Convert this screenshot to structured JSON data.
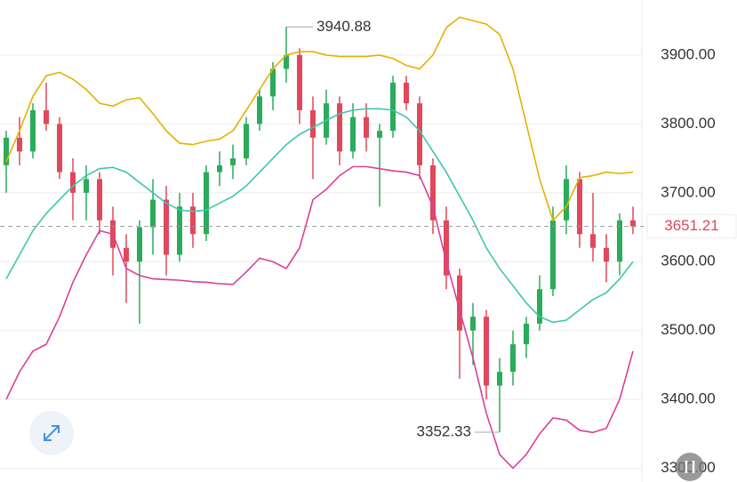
{
  "chart_data": {
    "type": "candlestick",
    "up_color": "#2bab5c",
    "down_color": "#e0485c",
    "open": [
      3740,
      3780,
      3760,
      3820,
      3800,
      3730,
      3700,
      3720,
      3660,
      3620,
      3600,
      3650,
      3690,
      3610,
      3680,
      3640,
      3730,
      3740,
      3750,
      3800,
      3840,
      3880,
      3900,
      3820,
      3780,
      3830,
      3760,
      3810,
      3780,
      3790,
      3860,
      3830,
      3740,
      3660,
      3580,
      3500,
      3520,
      3420,
      3440,
      3480,
      3510,
      3560,
      3660,
      3720,
      3640,
      3620,
      3600,
      3660
    ],
    "high": [
      3790,
      3810,
      3830,
      3860,
      3810,
      3750,
      3740,
      3730,
      3680,
      3640,
      3660,
      3720,
      3710,
      3700,
      3700,
      3740,
      3760,
      3770,
      3810,
      3850,
      3890,
      3940.88,
      3910,
      3840,
      3850,
      3840,
      3830,
      3830,
      3800,
      3870,
      3870,
      3840,
      3750,
      3680,
      3590,
      3540,
      3530,
      3460,
      3500,
      3520,
      3580,
      3680,
      3740,
      3730,
      3700,
      3640,
      3670,
      3680
    ],
    "low": [
      3700,
      3740,
      3750,
      3790,
      3720,
      3660,
      3660,
      3640,
      3580,
      3540,
      3510,
      3610,
      3580,
      3600,
      3620,
      3630,
      3710,
      3720,
      3740,
      3790,
      3820,
      3860,
      3800,
      3720,
      3770,
      3740,
      3750,
      3760,
      3680,
      3780,
      3820,
      3720,
      3640,
      3560,
      3430,
      3450,
      3400,
      3352.33,
      3420,
      3460,
      3500,
      3550,
      3640,
      3620,
      3600,
      3570,
      3580,
      3640
    ],
    "close": [
      3780,
      3760,
      3820,
      3800,
      3730,
      3700,
      3720,
      3660,
      3620,
      3600,
      3650,
      3690,
      3610,
      3680,
      3640,
      3730,
      3740,
      3750,
      3800,
      3840,
      3880,
      3900,
      3820,
      3780,
      3830,
      3760,
      3810,
      3780,
      3790,
      3860,
      3830,
      3740,
      3660,
      3580,
      3500,
      3520,
      3420,
      3440,
      3480,
      3510,
      3560,
      3660,
      3720,
      3640,
      3620,
      3600,
      3660,
      3651.21
    ],
    "bands": [
      {
        "color": "#e6b000",
        "values": [
          3745,
          3790,
          3840,
          3870,
          3875,
          3865,
          3850,
          3830,
          3826,
          3835,
          3838,
          3815,
          3790,
          3772,
          3770,
          3775,
          3778,
          3790,
          3820,
          3850,
          3880,
          3900,
          3905,
          3905,
          3900,
          3898,
          3898,
          3898,
          3900,
          3895,
          3885,
          3880,
          3900,
          3940,
          3955,
          3950,
          3945,
          3930,
          3880,
          3800,
          3720,
          3660,
          3680,
          3722,
          3725,
          3730,
          3728,
          3730
        ]
      },
      {
        "color": "#3dc7ad",
        "values": [
          3575,
          3610,
          3645,
          3670,
          3690,
          3710,
          3725,
          3735,
          3737,
          3730,
          3715,
          3700,
          3685,
          3675,
          3673,
          3675,
          3685,
          3695,
          3710,
          3730,
          3750,
          3770,
          3785,
          3795,
          3805,
          3815,
          3820,
          3822,
          3822,
          3820,
          3810,
          3790,
          3760,
          3730,
          3695,
          3660,
          3620,
          3590,
          3565,
          3540,
          3520,
          3512,
          3515,
          3530,
          3545,
          3555,
          3575,
          3600
        ]
      },
      {
        "color": "#d8409c",
        "values": [
          3400,
          3440,
          3470,
          3480,
          3520,
          3570,
          3610,
          3645,
          3640,
          3590,
          3580,
          3575,
          3574,
          3573,
          3571,
          3570,
          3568,
          3567,
          3585,
          3605,
          3600,
          3590,
          3620,
          3690,
          3705,
          3725,
          3738,
          3738,
          3735,
          3732,
          3730,
          3725,
          3680,
          3600,
          3530,
          3460,
          3380,
          3320,
          3300,
          3320,
          3350,
          3373,
          3370,
          3355,
          3352,
          3358,
          3400,
          3470
        ]
      }
    ],
    "ylim": [
      3280,
      3980
    ],
    "yticks": [
      {
        "value": 3300,
        "label": "3300.00"
      },
      {
        "value": 3400,
        "label": "3400.00"
      },
      {
        "value": 3500,
        "label": "3500.00"
      },
      {
        "value": 3600,
        "label": "3600.00"
      },
      {
        "value": 3700,
        "label": "3700.00"
      },
      {
        "value": 3800,
        "label": "3800.00"
      },
      {
        "value": 3900,
        "label": "3900.00"
      }
    ],
    "grid": true
  }
}
